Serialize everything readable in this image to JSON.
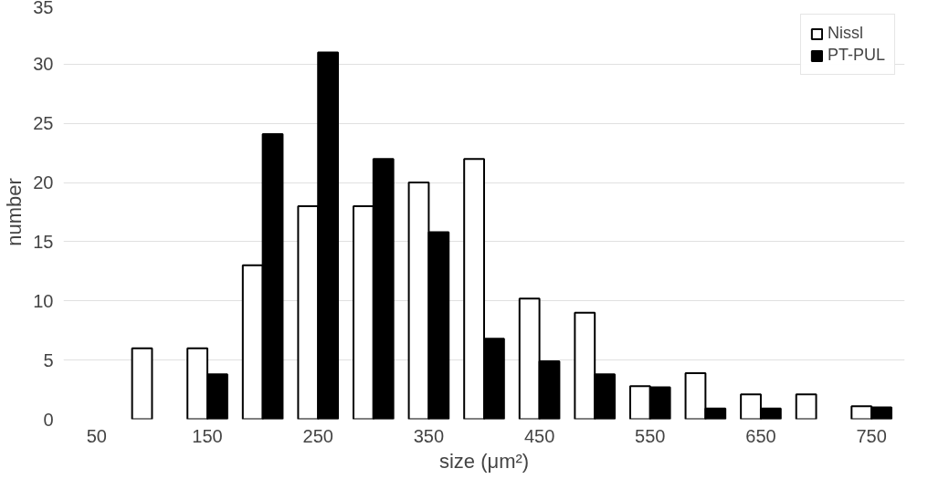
{
  "chart_data": {
    "type": "bar",
    "xlabel": "size (μm²)",
    "ylabel": "number",
    "categories": [
      "50",
      null,
      "150",
      null,
      "250",
      null,
      "350",
      null,
      "450",
      null,
      "550",
      null,
      "650",
      null,
      "750"
    ],
    "series": [
      {
        "name": "Nissl",
        "color": "#ffffff",
        "values": [
          null,
          6,
          6,
          13,
          18,
          18,
          20,
          22,
          10.2,
          9,
          2.8,
          3.9,
          2.1,
          2.1,
          1.1
        ]
      },
      {
        "name": "PT-PUL",
        "color": "#000000",
        "values": [
          null,
          null,
          3.8,
          24.1,
          31,
          22,
          15.8,
          6.8,
          4.9,
          3.8,
          2.7,
          0.9,
          0.9,
          null,
          1
        ]
      }
    ],
    "ylim": [
      0,
      35
    ],
    "yticks": [
      0,
      5,
      10,
      15,
      20,
      25,
      30,
      35
    ],
    "grid": "y",
    "legend": "top right"
  }
}
